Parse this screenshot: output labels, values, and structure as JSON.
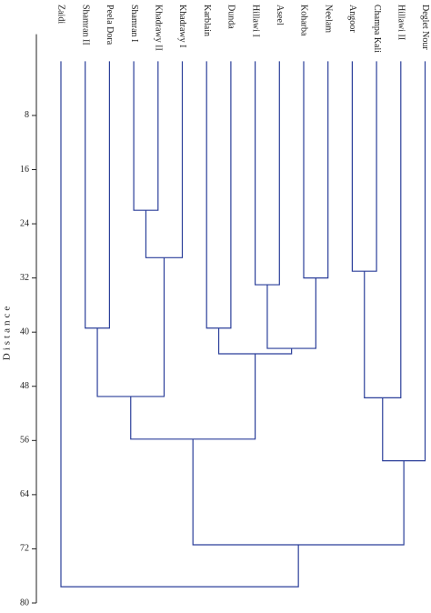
{
  "chart_data": {
    "type": "dendrogram",
    "y_label": "Distance",
    "leaves": [
      "Zaidi",
      "Shamran II",
      "Peela Dora",
      "Shamran I",
      "Khadrawy II",
      "Khadrawy I",
      "Karblain",
      "Dunda",
      "Hillawi I",
      "Aseel",
      "Koharba",
      "Neelam",
      "Angoor",
      "Champa Kali",
      "Hillawi II",
      "Deglet Nour"
    ],
    "merges": [
      {
        "left": 3,
        "right": 4,
        "height": 22
      },
      {
        "left": 16,
        "right": 5,
        "height": 29
      },
      {
        "left": 12,
        "right": 13,
        "height": 31
      },
      {
        "left": 10,
        "right": 11,
        "height": 32
      },
      {
        "left": 8,
        "right": 9,
        "height": 33
      },
      {
        "left": 1,
        "right": 2,
        "height": 39.4
      },
      {
        "left": 6,
        "right": 7,
        "height": 39.4
      },
      {
        "left": 20,
        "right": 19,
        "height": 42.4
      },
      {
        "left": 22,
        "right": 23,
        "height": 43.2
      },
      {
        "left": 21,
        "right": 17,
        "height": 49.5
      },
      {
        "left": 18,
        "right": 14,
        "height": 49.7
      },
      {
        "left": 25,
        "right": 24,
        "height": 55.8
      },
      {
        "left": 26,
        "right": 15,
        "height": 59
      },
      {
        "left": 27,
        "right": 28,
        "height": 71.4
      },
      {
        "left": 0,
        "right": 29,
        "height": 77.6
      }
    ],
    "color": "#2b3f9a",
    "ylim": [
      -4,
      80
    ],
    "yticks": [
      8,
      16,
      24,
      32,
      40,
      48,
      56,
      64,
      72,
      80
    ]
  }
}
